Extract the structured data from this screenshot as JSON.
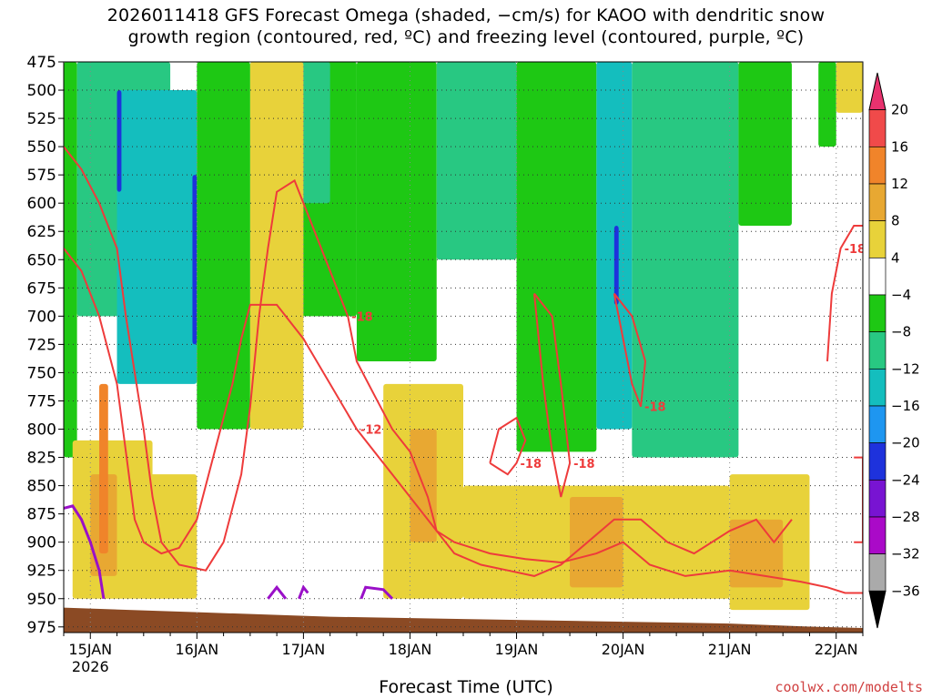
{
  "title_line1": "2026011418 GFS Forecast Omega (shaded, −cm/s) for KAOO with dendritic snow",
  "title_line2": "growth region (contoured, red, ºC) and freezing level (contoured, purple, ºC)",
  "xlabel": "Forecast Time (UTC)",
  "credit": "coolwx.com/modelts",
  "chart_data": {
    "type": "heatmap",
    "title": "2026011418 GFS Forecast Omega (shaded, −cm/s) for KAOO with dendritic snow growth region (contoured, red, ºC) and freezing level (contoured, purple, ºC)",
    "xlabel": "Forecast Time (UTC)",
    "ylabel": "",
    "y_scale": "pressure (hPa), increasing downward",
    "y_ticks": [
      475,
      500,
      525,
      550,
      575,
      600,
      625,
      650,
      675,
      700,
      725,
      750,
      775,
      800,
      825,
      850,
      875,
      900,
      925,
      950,
      975
    ],
    "ylim": [
      475,
      980
    ],
    "x_ticks": [
      {
        "label": "15JAN",
        "sub": "2026",
        "t": 6
      },
      {
        "label": "16JAN",
        "sub": "",
        "t": 30
      },
      {
        "label": "17JAN",
        "sub": "",
        "t": 54
      },
      {
        "label": "18JAN",
        "sub": "",
        "t": 78
      },
      {
        "label": "19JAN",
        "sub": "",
        "t": 102
      },
      {
        "label": "20JAN",
        "sub": "",
        "t": 126
      },
      {
        "label": "21JAN",
        "sub": "",
        "t": 150
      },
      {
        "label": "22JAN",
        "sub": "",
        "t": 174
      }
    ],
    "xlim": [
      0,
      180
    ],
    "colorbar": {
      "labels": [
        "20",
        "16",
        "12",
        "8",
        "4",
        "−4",
        "−8",
        "−12",
        "−16",
        "−20",
        "−24",
        "−28",
        "−32",
        "−36"
      ],
      "bins": [
        {
          "color": "#e8326e",
          "lo": 20,
          "hi": null
        },
        {
          "color": "#f04a4a",
          "lo": 16,
          "hi": 20
        },
        {
          "color": "#f0842a",
          "lo": 12,
          "hi": 16
        },
        {
          "color": "#e8a832",
          "lo": 8,
          "hi": 12
        },
        {
          "color": "#e8d23a",
          "lo": 4,
          "hi": 8
        },
        {
          "color": "#ffffff",
          "lo": -4,
          "hi": 4
        },
        {
          "color": "#1ec814",
          "lo": -8,
          "hi": -4
        },
        {
          "color": "#28c882",
          "lo": -12,
          "hi": -8
        },
        {
          "color": "#14bebe",
          "lo": -16,
          "hi": -12
        },
        {
          "color": "#1e96f0",
          "lo": -20,
          "hi": -16
        },
        {
          "color": "#1e32dc",
          "lo": -24,
          "hi": -20
        },
        {
          "color": "#7814d2",
          "lo": -28,
          "hi": -24
        },
        {
          "color": "#aa0ac8",
          "lo": -32,
          "hi": -28
        },
        {
          "color": "#aaaaaa",
          "lo": -36,
          "hi": -32
        },
        {
          "color": "#000000",
          "lo": null,
          "hi": -36
        }
      ]
    },
    "omega_regions": [
      {
        "value": -6,
        "t0": 0,
        "t1": 3,
        "p0": 475,
        "p1": 825
      },
      {
        "value": -10,
        "t0": 3,
        "t1": 24,
        "p0": 475,
        "p1": 700
      },
      {
        "value": -14,
        "t0": 12,
        "t1": 30,
        "p0": 500,
        "p1": 760
      },
      {
        "value": -21,
        "t0": 12,
        "t1": 13,
        "p0": 500,
        "p1": 590
      },
      {
        "value": -22,
        "t0": 29,
        "t1": 30,
        "p0": 575,
        "p1": 725
      },
      {
        "value": -6,
        "t0": 30,
        "t1": 42,
        "p0": 475,
        "p1": 800
      },
      {
        "value": -6,
        "t0": 42,
        "t1": 66,
        "p0": 475,
        "p1": 700
      },
      {
        "value": -10,
        "t0": 48,
        "t1": 60,
        "p0": 475,
        "p1": 600
      },
      {
        "value": -6,
        "t0": 66,
        "t1": 84,
        "p0": 475,
        "p1": 740
      },
      {
        "value": -10,
        "t0": 84,
        "t1": 102,
        "p0": 475,
        "p1": 650
      },
      {
        "value": -6,
        "t0": 102,
        "t1": 120,
        "p0": 475,
        "p1": 820
      },
      {
        "value": -14,
        "t0": 120,
        "t1": 128,
        "p0": 475,
        "p1": 800
      },
      {
        "value": -22,
        "t0": 124,
        "t1": 125,
        "p0": 620,
        "p1": 690
      },
      {
        "value": -10,
        "t0": 128,
        "t1": 152,
        "p0": 475,
        "p1": 825
      },
      {
        "value": -6,
        "t0": 152,
        "t1": 164,
        "p0": 475,
        "p1": 620
      },
      {
        "value": -6,
        "t0": 170,
        "t1": 174,
        "p0": 475,
        "p1": 550
      },
      {
        "value": 6,
        "t0": 2,
        "t1": 20,
        "p0": 810,
        "p1": 950
      },
      {
        "value": 10,
        "t0": 6,
        "t1": 12,
        "p0": 840,
        "p1": 930
      },
      {
        "value": 14,
        "t0": 8,
        "t1": 10,
        "p0": 760,
        "p1": 910
      },
      {
        "value": 6,
        "t0": 18,
        "t1": 30,
        "p0": 840,
        "p1": 950
      },
      {
        "value": 6,
        "t0": 42,
        "t1": 54,
        "p0": 475,
        "p1": 800
      },
      {
        "value": 6,
        "t0": 72,
        "t1": 90,
        "p0": 760,
        "p1": 950
      },
      {
        "value": 10,
        "t0": 78,
        "t1": 84,
        "p0": 800,
        "p1": 900
      },
      {
        "value": 6,
        "t0": 90,
        "t1": 150,
        "p0": 850,
        "p1": 950
      },
      {
        "value": 10,
        "t0": 114,
        "t1": 126,
        "p0": 860,
        "p1": 940
      },
      {
        "value": 6,
        "t0": 150,
        "t1": 168,
        "p0": 840,
        "p1": 960
      },
      {
        "value": 10,
        "t0": 150,
        "t1": 162,
        "p0": 880,
        "p1": 940
      },
      {
        "value": 6,
        "t0": 174,
        "t1": 180,
        "p0": 475,
        "p1": 520
      }
    ],
    "dgz_contours": [
      {
        "label": "-18",
        "points": [
          [
            0,
            550
          ],
          [
            4,
            570
          ],
          [
            8,
            600
          ],
          [
            12,
            640
          ],
          [
            14,
            700
          ],
          [
            16,
            750
          ],
          [
            18,
            800
          ],
          [
            20,
            860
          ],
          [
            22,
            900
          ],
          [
            26,
            920
          ],
          [
            32,
            925
          ],
          [
            36,
            900
          ],
          [
            40,
            840
          ],
          [
            42,
            780
          ],
          [
            44,
            700
          ],
          [
            46,
            640
          ],
          [
            48,
            590
          ],
          [
            52,
            580
          ],
          [
            56,
            620
          ],
          [
            60,
            660
          ],
          [
            64,
            700
          ],
          [
            66,
            740
          ],
          [
            70,
            770
          ],
          [
            74,
            800
          ],
          [
            78,
            820
          ],
          [
            82,
            860
          ],
          [
            84,
            890
          ],
          [
            88,
            910
          ],
          [
            94,
            920
          ],
          [
            100,
            925
          ],
          [
            106,
            930
          ],
          [
            112,
            920
          ],
          [
            118,
            900
          ],
          [
            124,
            880
          ],
          [
            130,
            880
          ],
          [
            136,
            900
          ],
          [
            142,
            910
          ],
          [
            150,
            890
          ],
          [
            156,
            880
          ],
          [
            160,
            900
          ],
          [
            164,
            880
          ]
        ]
      },
      {
        "label": "-12",
        "points": [
          [
            0,
            640
          ],
          [
            4,
            660
          ],
          [
            8,
            700
          ],
          [
            12,
            760
          ],
          [
            14,
            820
          ],
          [
            16,
            880
          ],
          [
            18,
            900
          ],
          [
            22,
            910
          ],
          [
            26,
            905
          ],
          [
            30,
            880
          ],
          [
            34,
            820
          ],
          [
            38,
            760
          ],
          [
            40,
            720
          ],
          [
            42,
            690
          ],
          [
            48,
            690
          ],
          [
            54,
            720
          ],
          [
            60,
            760
          ],
          [
            66,
            800
          ],
          [
            72,
            830
          ],
          [
            78,
            860
          ],
          [
            84,
            890
          ],
          [
            88,
            900
          ],
          [
            96,
            910
          ],
          [
            104,
            915
          ],
          [
            112,
            918
          ],
          [
            120,
            910
          ],
          [
            126,
            900
          ],
          [
            132,
            920
          ],
          [
            140,
            930
          ],
          [
            150,
            925
          ],
          [
            158,
            930
          ],
          [
            166,
            935
          ],
          [
            172,
            940
          ],
          [
            176,
            945
          ],
          [
            180,
            945
          ]
        ]
      },
      {
        "label": "-18",
        "points": [
          [
            96,
            830
          ],
          [
            98,
            800
          ],
          [
            102,
            790
          ],
          [
            104,
            810
          ],
          [
            102,
            830
          ],
          [
            100,
            840
          ],
          [
            98,
            835
          ],
          [
            96,
            830
          ]
        ]
      },
      {
        "label": "-18",
        "points": [
          [
            106,
            680
          ],
          [
            108,
            760
          ],
          [
            110,
            820
          ],
          [
            112,
            860
          ],
          [
            114,
            830
          ],
          [
            112,
            760
          ],
          [
            110,
            700
          ],
          [
            106,
            680
          ]
        ]
      },
      {
        "label": "-18",
        "points": [
          [
            124,
            680
          ],
          [
            126,
            720
          ],
          [
            128,
            760
          ],
          [
            130,
            780
          ],
          [
            131,
            740
          ],
          [
            128,
            700
          ],
          [
            124,
            680
          ]
        ]
      },
      {
        "label": "-18",
        "points": [
          [
            172,
            740
          ],
          [
            173,
            680
          ],
          [
            175,
            640
          ],
          [
            178,
            620
          ],
          [
            180,
            620
          ]
        ]
      },
      {
        "label": "-18",
        "points": [
          [
            178,
            825
          ],
          [
            180,
            825
          ],
          [
            180,
            900
          ],
          [
            178,
            900
          ]
        ]
      }
    ],
    "freezing_contours": [
      {
        "points": [
          [
            0,
            870
          ],
          [
            2,
            868
          ],
          [
            4,
            880
          ],
          [
            6,
            900
          ],
          [
            8,
            925
          ],
          [
            9,
            950
          ]
        ]
      },
      {
        "points": [
          [
            46,
            950
          ],
          [
            48,
            940
          ],
          [
            50,
            950
          ]
        ]
      },
      {
        "points": [
          [
            53,
            950
          ],
          [
            54,
            940
          ],
          [
            55,
            945
          ]
        ]
      },
      {
        "points": [
          [
            67,
            950
          ],
          [
            68,
            940
          ],
          [
            72,
            942
          ],
          [
            74,
            950
          ]
        ]
      }
    ]
  }
}
